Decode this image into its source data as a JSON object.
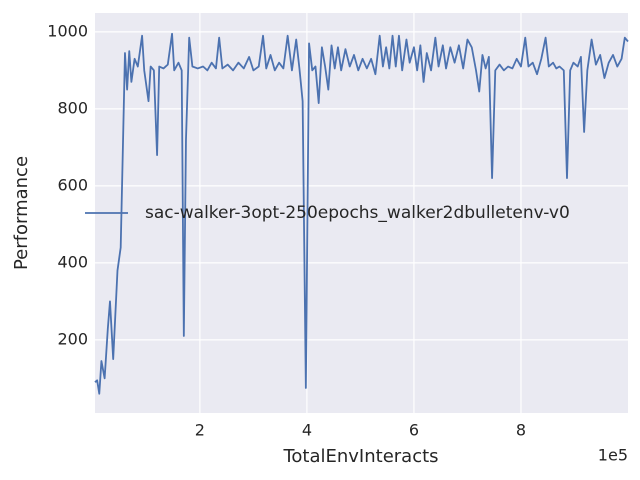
{
  "chart_data": {
    "type": "line",
    "xlabel": "TotalEnvInteracts",
    "ylabel": "Performance",
    "x_offset_label": "1e5",
    "xlim": [
      4000,
      1000000
    ],
    "ylim": [
      10,
      1049
    ],
    "xticks": [
      {
        "value": 200000,
        "label": "2"
      },
      {
        "value": 400000,
        "label": "4"
      },
      {
        "value": 600000,
        "label": "6"
      },
      {
        "value": 800000,
        "label": "8"
      }
    ],
    "yticks": [
      200,
      400,
      600,
      800,
      1000
    ],
    "grid": true,
    "legend_loc": "center left",
    "background": "#eaeaf2",
    "x": [
      4000,
      8000,
      12000,
      16000,
      22000,
      28000,
      32000,
      38000,
      46000,
      52000,
      60000,
      64000,
      68000,
      72000,
      78000,
      84000,
      92000,
      96000,
      104000,
      108000,
      114000,
      120000,
      124000,
      132000,
      140000,
      148000,
      152000,
      160000,
      166000,
      170000,
      174000,
      180000,
      186000,
      196000,
      206000,
      214000,
      222000,
      230000,
      236000,
      242000,
      252000,
      262000,
      272000,
      282000,
      292000,
      300000,
      310000,
      318000,
      324000,
      332000,
      340000,
      348000,
      356000,
      364000,
      372000,
      380000,
      386000,
      392000,
      398000,
      404000,
      410000,
      416000,
      422000,
      428000,
      434000,
      440000,
      446000,
      452000,
      458000,
      464000,
      472000,
      480000,
      488000,
      496000,
      504000,
      512000,
      520000,
      528000,
      536000,
      542000,
      548000,
      554000,
      560000,
      566000,
      572000,
      578000,
      586000,
      592000,
      600000,
      606000,
      612000,
      618000,
      624000,
      632000,
      640000,
      646000,
      654000,
      660000,
      668000,
      676000,
      684000,
      692000,
      700000,
      708000,
      716000,
      722000,
      728000,
      734000,
      740000,
      746000,
      752000,
      760000,
      768000,
      776000,
      784000,
      792000,
      800000,
      808000,
      814000,
      822000,
      830000,
      838000,
      846000,
      852000,
      860000,
      866000,
      872000,
      880000,
      886000,
      892000,
      898000,
      906000,
      912000,
      918000,
      924000,
      932000,
      940000,
      948000,
      956000,
      964000,
      972000,
      980000,
      988000,
      994000,
      1000000
    ],
    "series": [
      {
        "name": "sac-walker-3opt-250epochs_walker2dbulletenv-v0",
        "color": "#4c72b0",
        "values": [
          90,
          95,
          60,
          145,
          100,
          230,
          300,
          150,
          380,
          440,
          945,
          850,
          950,
          870,
          930,
          910,
          990,
          900,
          820,
          910,
          900,
          680,
          910,
          905,
          915,
          995,
          900,
          920,
          900,
          210,
          720,
          985,
          910,
          905,
          910,
          900,
          920,
          905,
          985,
          905,
          915,
          900,
          920,
          905,
          935,
          900,
          910,
          990,
          905,
          940,
          900,
          920,
          905,
          990,
          900,
          980,
          905,
          820,
          75,
          970,
          900,
          910,
          815,
          960,
          910,
          850,
          965,
          905,
          960,
          900,
          955,
          910,
          940,
          900,
          930,
          905,
          930,
          890,
          990,
          910,
          960,
          905,
          990,
          910,
          990,
          900,
          980,
          920,
          960,
          900,
          965,
          870,
          945,
          900,
          985,
          910,
          965,
          905,
          960,
          920,
          965,
          905,
          980,
          960,
          900,
          845,
          940,
          905,
          935,
          620,
          900,
          915,
          900,
          910,
          905,
          930,
          910,
          985,
          910,
          920,
          890,
          930,
          985,
          910,
          920,
          905,
          910,
          900,
          620,
          900,
          920,
          910,
          935,
          740,
          900,
          980,
          915,
          940,
          880,
          920,
          940,
          910,
          930,
          985,
          975
        ]
      }
    ]
  }
}
